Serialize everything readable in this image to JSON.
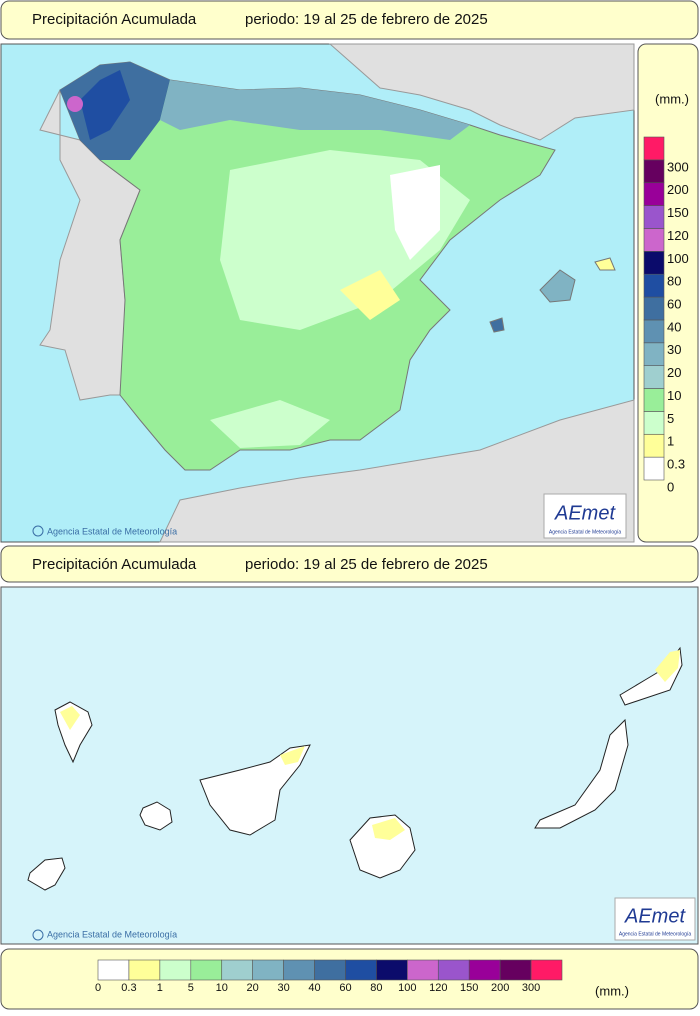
{
  "top_panel": {
    "header": {
      "title": "Precipitación Acumulada",
      "period": "periodo: 19 al 25 de febrero de 2025"
    },
    "credit": "Agencia Estatal de Meteorología",
    "logo": {
      "name": "AEmet",
      "subtitle": "Agencia Estatal de Meteorología"
    }
  },
  "legend": {
    "unit": "(mm.)",
    "levels": [
      {
        "label": "0",
        "color": "#ffffff"
      },
      {
        "label": "0.3",
        "color": "#ffff99"
      },
      {
        "label": "1",
        "color": "#ccffcc"
      },
      {
        "label": "5",
        "color": "#99ee99"
      },
      {
        "label": "10",
        "color": "#9fcfcf"
      },
      {
        "label": "20",
        "color": "#80b3c3"
      },
      {
        "label": "30",
        "color": "#5f91b2"
      },
      {
        "label": "40",
        "color": "#3f6fa0"
      },
      {
        "label": "60",
        "color": "#1f4ea2"
      },
      {
        "label": "80",
        "color": "#0b0b6b"
      },
      {
        "label": "100",
        "color": "#cc66cc"
      },
      {
        "label": "120",
        "color": "#9a55cc"
      },
      {
        "label": "150",
        "color": "#990099"
      },
      {
        "label": "200",
        "color": "#66005f"
      },
      {
        "label": "300",
        "color": "#ff1a66"
      }
    ]
  },
  "bottom_panel": {
    "header": {
      "title": "Precipitación Acumulada",
      "period": "periodo: 19 al 25 de febrero de 2025"
    },
    "credit": "Agencia Estatal de Meteorología",
    "logo": {
      "name": "AEmet",
      "subtitle": "Agencia Estatal de Meteorología"
    }
  },
  "bottom_legend": {
    "unit": "(mm.)"
  }
}
